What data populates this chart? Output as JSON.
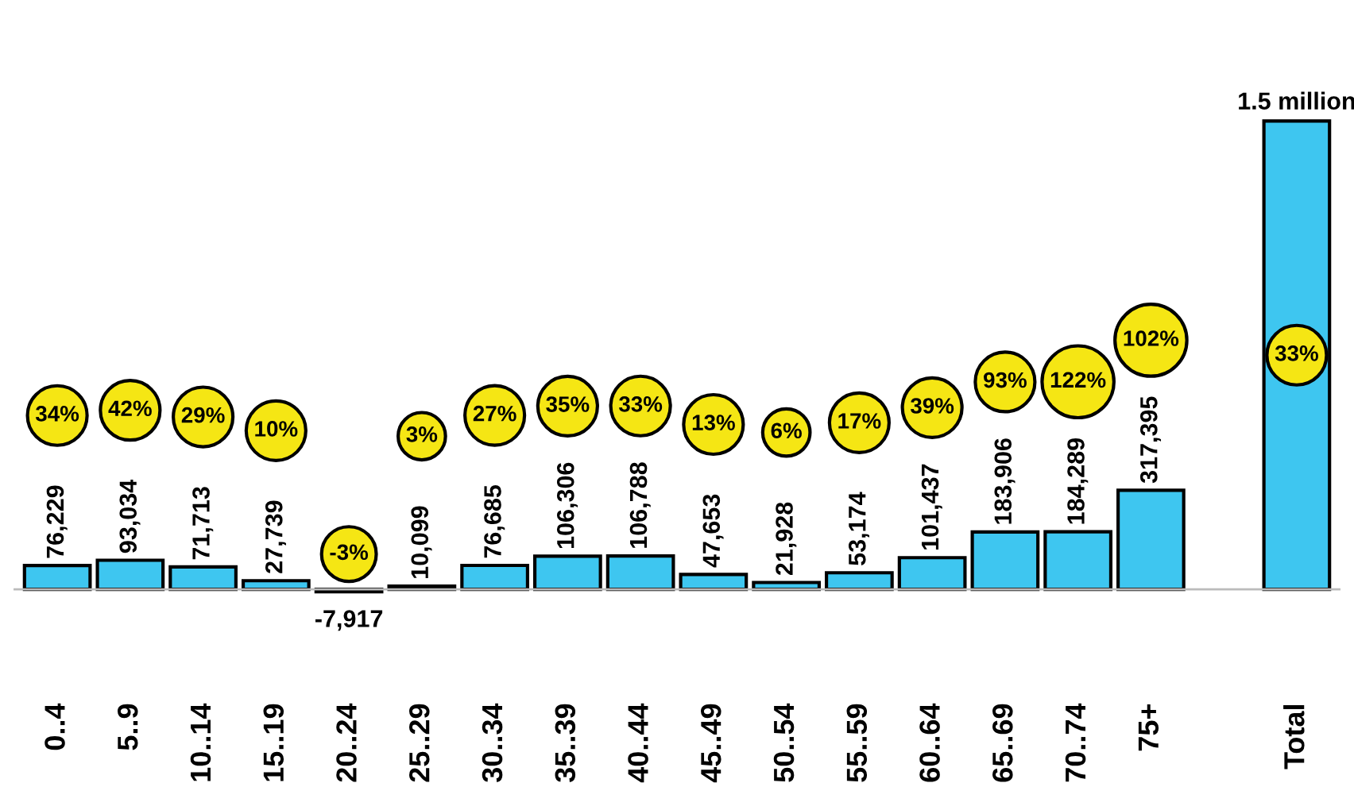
{
  "chart_data": {
    "type": "bar",
    "categories": [
      "0..4",
      "5..9",
      "10..14",
      "15..19",
      "20..24",
      "25..29",
      "30..34",
      "35..39",
      "40..44",
      "45..49",
      "50..54",
      "55..59",
      "60..64",
      "65..69",
      "70..74",
      "75+",
      null,
      "Total"
    ],
    "values": [
      76229,
      93034,
      71713,
      27739,
      -7917,
      10099,
      76685,
      106306,
      106788,
      47653,
      21928,
      53174,
      101437,
      183906,
      184289,
      317395,
      null,
      1500000
    ],
    "value_labels": [
      "76,229",
      "93,034",
      "71,713",
      "27,739",
      "-7,917",
      "10,099",
      "76,685",
      "106,306",
      "106,788",
      "47,653",
      "21,928",
      "53,174",
      "101,437",
      "183,906",
      "184,289",
      "317,395",
      null,
      "1.5 million"
    ],
    "color": "#3ec6f0",
    "annotations": [
      "34%",
      "42%",
      "29%",
      "10%",
      "-3%",
      "3%",
      "27%",
      "35%",
      "33%",
      "13%",
      "6%",
      "17%",
      "39%",
      "93%",
      "122%",
      "102%",
      "33%"
    ],
    "grid": false,
    "legend": false
  }
}
